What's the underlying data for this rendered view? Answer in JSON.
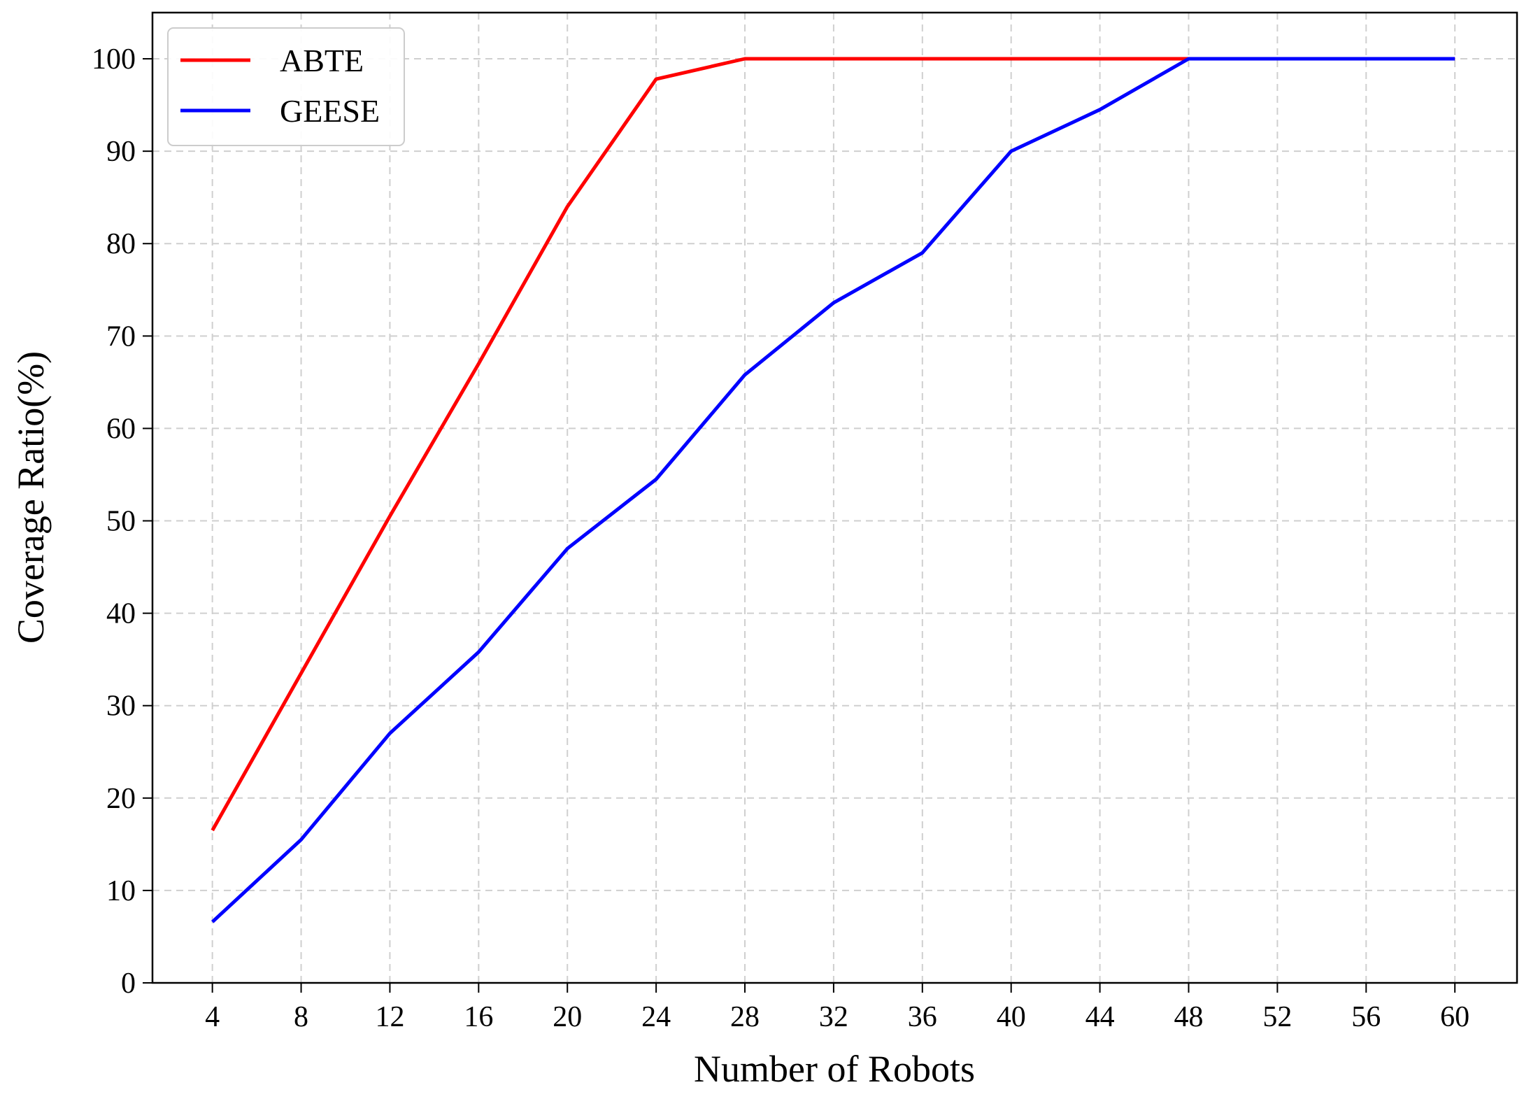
{
  "chart_data": {
    "type": "line",
    "xlabel": "Number of Robots",
    "ylabel": "Coverage Ratio(%)",
    "x": [
      4,
      8,
      12,
      16,
      20,
      24,
      28,
      32,
      36,
      40,
      44,
      48,
      52,
      56,
      60
    ],
    "xticks": [
      "4",
      "8",
      "12",
      "16",
      "20",
      "24",
      "28",
      "32",
      "36",
      "40",
      "44",
      "48",
      "52",
      "56",
      "60"
    ],
    "yticks": [
      "0",
      "10",
      "20",
      "30",
      "40",
      "50",
      "60",
      "70",
      "80",
      "90",
      "100"
    ],
    "xlim": [
      1.3,
      62.8
    ],
    "ylim": [
      0,
      105
    ],
    "grid": true,
    "legend_position": "top-left",
    "series": [
      {
        "name": "ABTE",
        "color": "#ff0000",
        "values": [
          16.5,
          33.5,
          50.5,
          67,
          84,
          97.8,
          100,
          100,
          100,
          100,
          100,
          100,
          100,
          100,
          100
        ]
      },
      {
        "name": "GEESE",
        "color": "#0000ff",
        "values": [
          6.6,
          15.5,
          27,
          35.8,
          47,
          54.5,
          65.8,
          73.6,
          79,
          90,
          94.5,
          100,
          100,
          100,
          100
        ]
      }
    ]
  }
}
